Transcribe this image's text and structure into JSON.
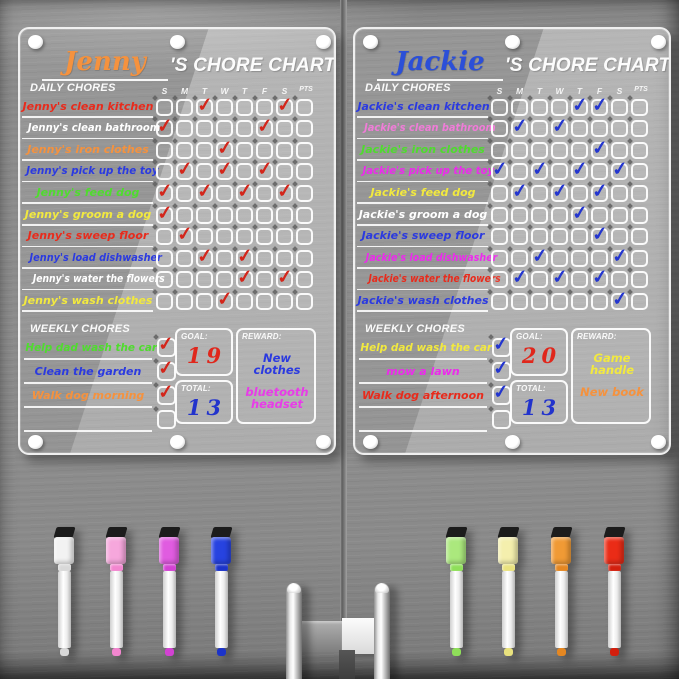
{
  "check_glyph": "✓",
  "charts": [
    {
      "name": "Jenny",
      "name_color": "#f5923e",
      "title_suffix": "'S CHORE CHART",
      "daily_label": "DAILY CHORES",
      "weekly_label": "WEEKLY CHORES",
      "day_headers": [
        "S",
        "M",
        "T",
        "W",
        "T",
        "F",
        "S",
        "PTS"
      ],
      "check_color": "#d3261b",
      "daily_chores": [
        {
          "label": "Jenny's clean kitchen",
          "color": "#e82b1c",
          "checks": [
            2,
            6
          ]
        },
        {
          "label": "Jenny's clean bathroom",
          "color": "#ffffff",
          "checks": [
            0,
            5
          ]
        },
        {
          "label": "Jenny's iron clothes",
          "color": "#f5923e",
          "checks": [
            3
          ]
        },
        {
          "label": "Jenny's pick up the toy",
          "color": "#2b3ae0",
          "checks": [
            1,
            3,
            5
          ]
        },
        {
          "label": "Jenny's feed dog",
          "color": "#4fdc2e",
          "checks": [
            0,
            2,
            4,
            6
          ]
        },
        {
          "label": "Jenny's groom a dog",
          "color": "#f2e93f",
          "checks": [
            0
          ]
        },
        {
          "label": "Jenny's sweep floor",
          "color": "#e82b1c",
          "checks": [
            1
          ]
        },
        {
          "label": "Jenny's load dishwasher",
          "color": "#2b3ae0",
          "checks": [
            2,
            4
          ]
        },
        {
          "label": "Jenny's water the flowers",
          "color": "#ffffff",
          "checks": [
            4,
            6
          ]
        },
        {
          "label": "Jenny's wash clothes",
          "color": "#f2e93f",
          "checks": [
            3
          ]
        }
      ],
      "weekly_chores": [
        {
          "label": "Help dad wash the car",
          "color": "#4fdc2e",
          "checked": true
        },
        {
          "label": "Clean the garden",
          "color": "#2b3ae0",
          "checked": true
        },
        {
          "label": "Walk dog morning",
          "color": "#f5923e",
          "checked": true
        },
        {
          "label": "",
          "color": "",
          "checked": false
        }
      ],
      "goal_label": "GOAL:",
      "goal_value": "19",
      "goal_color": "#e0271c",
      "total_label": "TOTAL:",
      "total_value": "13",
      "total_color": "#2233cc",
      "reward_label": "REWARD:",
      "rewards": [
        {
          "text": "New clothes",
          "color": "#2b3ae0"
        },
        {
          "text": "bluetooth headset",
          "color": "#e83ce8"
        }
      ]
    },
    {
      "name": "Jackie",
      "name_color": "#2b4fd8",
      "title_suffix": "'S CHORE CHART",
      "daily_label": "DAILY CHORES",
      "weekly_label": "WEEKLY CHORES",
      "day_headers": [
        "S",
        "M",
        "T",
        "W",
        "T",
        "F",
        "S",
        "PTS"
      ],
      "check_color": "#2335cf",
      "daily_chores": [
        {
          "label": "Jackie's clean kitchen",
          "color": "#2b3ae0",
          "checks": [
            4,
            5
          ]
        },
        {
          "label": "Jackie's clean bathroom",
          "color": "#f07cd8",
          "checks": [
            1,
            3
          ]
        },
        {
          "label": "Jackie's iron clothes",
          "color": "#4fdc2e",
          "checks": [
            5
          ]
        },
        {
          "label": "Jackie's pick up the toy",
          "color": "#ec2bec",
          "checks": [
            0,
            2,
            4,
            6
          ]
        },
        {
          "label": "Jackie's feed dog",
          "color": "#f2e93f",
          "checks": [
            1,
            3,
            5
          ]
        },
        {
          "label": "Jackie's groom a dog",
          "color": "#ffffff",
          "checks": [
            4
          ]
        },
        {
          "label": "Jackie's sweep floor",
          "color": "#2b3ae0",
          "checks": [
            5
          ]
        },
        {
          "label": "Jackie's load dishwasher",
          "color": "#ec2bec",
          "checks": [
            2,
            6
          ]
        },
        {
          "label": "Jackie's water the flowers",
          "color": "#e82b1c",
          "checks": [
            1,
            3,
            5
          ]
        },
        {
          "label": "Jackie's wash clothes",
          "color": "#2b3ae0",
          "checks": [
            6
          ]
        }
      ],
      "weekly_chores": [
        {
          "label": "Help dad wash the car",
          "color": "#f2e93f",
          "checked": true
        },
        {
          "label": "mow a lawn",
          "color": "#ec2bec",
          "checked": true
        },
        {
          "label": "Walk dog afternoon",
          "color": "#e82b1c",
          "checked": true
        },
        {
          "label": "",
          "color": "",
          "checked": false
        }
      ],
      "goal_label": "GOAL:",
      "goal_value": "20",
      "goal_color": "#e0271c",
      "total_label": "TOTAL:",
      "total_value": "13",
      "total_color": "#2233cc",
      "reward_label": "REWARD:",
      "rewards": [
        {
          "text": "Game handle",
          "color": "#f2e93f"
        },
        {
          "text": "New book",
          "color": "#f5923e"
        }
      ]
    }
  ],
  "markers": [
    {
      "side": "left",
      "items": [
        {
          "name": "white",
          "cap": "#f2f2f2",
          "accent": "#d8d8d8"
        },
        {
          "name": "pink",
          "cap": "#f6a7dc",
          "accent": "#f286cf"
        },
        {
          "name": "magenta",
          "cap": "#e05ce0",
          "accent": "#d342d3"
        },
        {
          "name": "blue",
          "cap": "#2743e0",
          "accent": "#1c33c9"
        }
      ]
    },
    {
      "side": "right",
      "items": [
        {
          "name": "green",
          "cap": "#abe87d",
          "accent": "#8fdf5a"
        },
        {
          "name": "yellow",
          "cap": "#f4efad",
          "accent": "#e9e27e"
        },
        {
          "name": "orange",
          "cap": "#f09a35",
          "accent": "#e48722"
        },
        {
          "name": "red",
          "cap": "#ea2c17",
          "accent": "#d31f0d"
        }
      ]
    }
  ]
}
